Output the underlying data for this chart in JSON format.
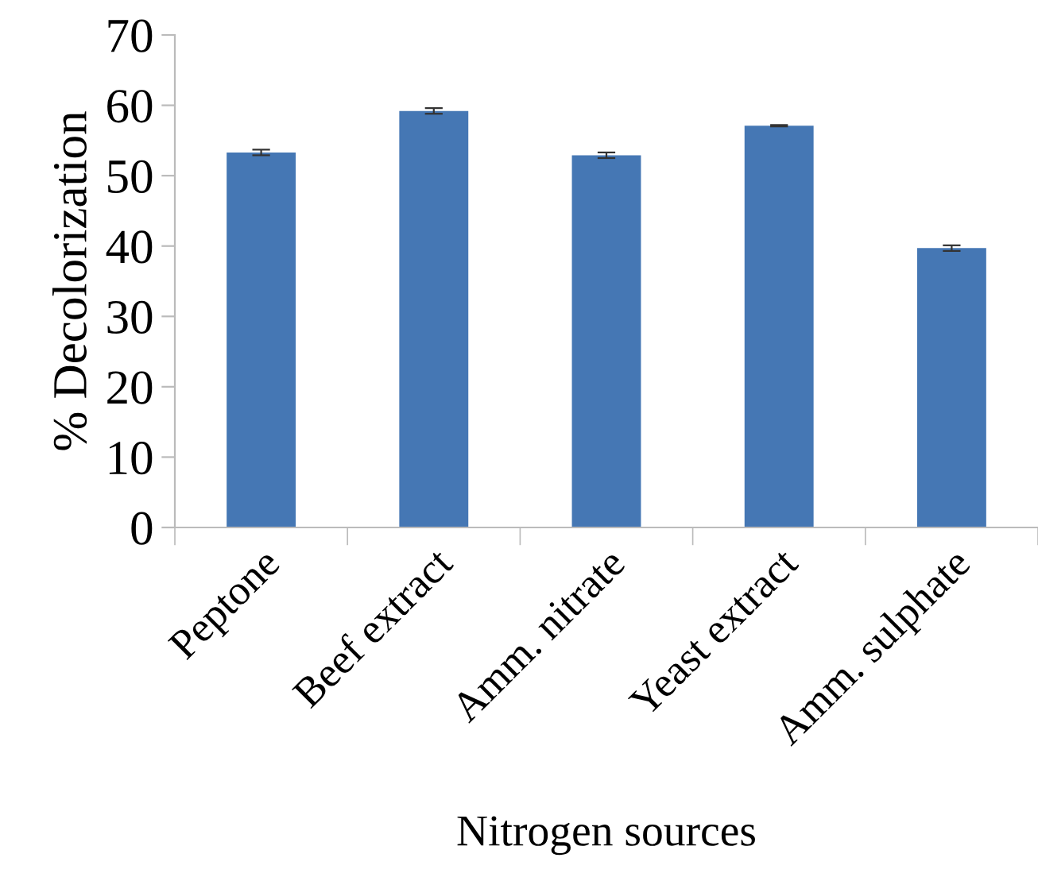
{
  "chart_data": {
    "type": "bar",
    "xlabel": "Nitrogen sources",
    "ylabel": "% Decolorization",
    "categories": [
      "Peptone",
      "Beef extract",
      "Amm. nitrate",
      "Yeast extract",
      "Amm. sulphate"
    ],
    "values": [
      53.3,
      59.2,
      52.9,
      57.1,
      39.7
    ],
    "errors": [
      0.4,
      0.4,
      0.4,
      0.1,
      0.4
    ],
    "color": "#4577b4",
    "ylim": [
      0,
      70
    ],
    "yticks": [
      0,
      10,
      20,
      30,
      40,
      50,
      60,
      70
    ],
    "grid": false,
    "legend": false
  }
}
